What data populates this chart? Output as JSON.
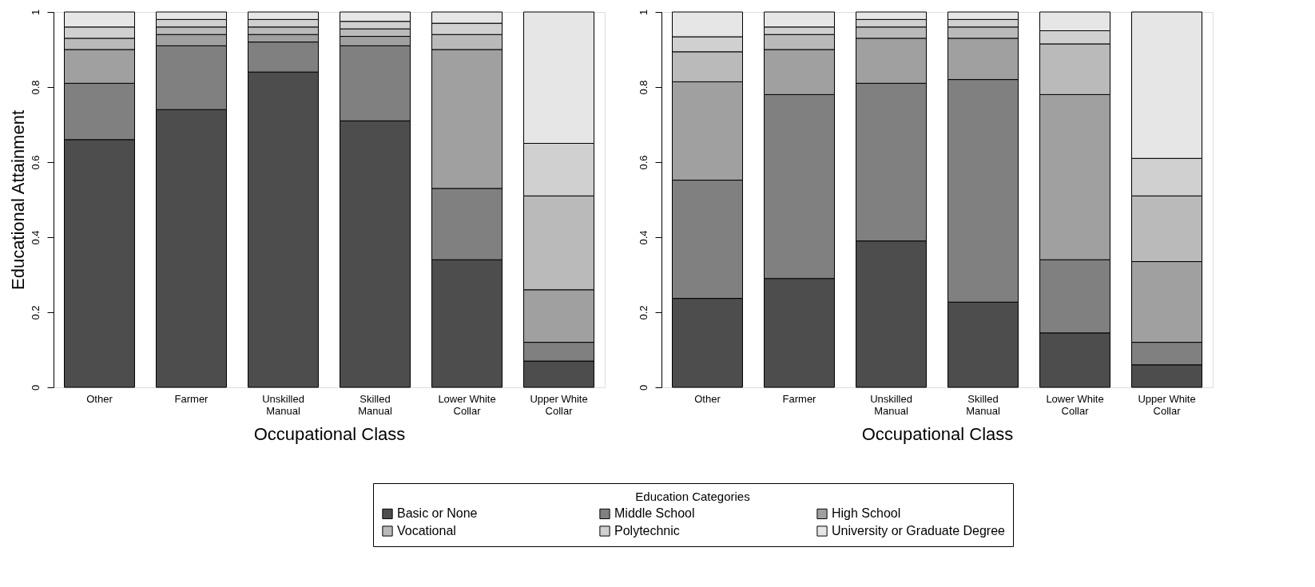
{
  "chart_data": [
    {
      "type": "bar",
      "stacked": true,
      "xlabel": "Occupational Class",
      "ylabel": "Educational Attainment",
      "legend_title": "Education Categories",
      "legend": "bottom",
      "grid": false,
      "categories": [
        "Other",
        "Farmer",
        "Unskilled\nManual",
        "Skilled\nManual",
        "Lower White\nCollar",
        "Upper White\nCollar"
      ],
      "ylim": [
        0,
        1
      ],
      "yticks": [
        0,
        0.2,
        0.4,
        0.6,
        0.8,
        1
      ],
      "series": [
        {
          "name": "Basic or None",
          "color": "#4d4d4d",
          "values": [
            0.66,
            0.74,
            0.84,
            0.71,
            0.34,
            0.07
          ]
        },
        {
          "name": "Middle School",
          "color": "#808080",
          "values": [
            0.15,
            0.17,
            0.08,
            0.2,
            0.19,
            0.05
          ]
        },
        {
          "name": "High School",
          "color": "#a0a0a0",
          "values": [
            0.09,
            0.03,
            0.02,
            0.025,
            0.37,
            0.14
          ]
        },
        {
          "name": "Vocational",
          "color": "#bababa",
          "values": [
            0.03,
            0.02,
            0.02,
            0.02,
            0.04,
            0.25
          ]
        },
        {
          "name": "Polytechnic",
          "color": "#d0d0d0",
          "values": [
            0.03,
            0.02,
            0.02,
            0.02,
            0.03,
            0.14
          ]
        },
        {
          "name": "University or Graduate Degree",
          "color": "#e6e6e6",
          "values": [
            0.04,
            0.02,
            0.02,
            0.025,
            0.03,
            0.35
          ]
        }
      ]
    },
    {
      "type": "bar",
      "stacked": true,
      "xlabel": "Occupational Class",
      "grid": false,
      "categories": [
        "Other",
        "Farmer",
        "Unskilled\nManual",
        "Skilled\nManual",
        "Lower White\nCollar",
        "Upper White\nCollar"
      ],
      "ylim": [
        0,
        1
      ],
      "yticks": [
        0,
        0.2,
        0.4,
        0.6,
        0.8,
        1
      ],
      "series": [
        {
          "name": "Basic or None",
          "color": "#4d4d4d",
          "values": [
            0.237,
            0.29,
            0.39,
            0.227,
            0.145,
            0.06
          ]
        },
        {
          "name": "Middle School",
          "color": "#808080",
          "values": [
            0.315,
            0.49,
            0.42,
            0.593,
            0.195,
            0.06
          ]
        },
        {
          "name": "High School",
          "color": "#a0a0a0",
          "values": [
            0.262,
            0.12,
            0.12,
            0.11,
            0.44,
            0.215
          ]
        },
        {
          "name": "Vocational",
          "color": "#bababa",
          "values": [
            0.08,
            0.04,
            0.03,
            0.03,
            0.135,
            0.175
          ]
        },
        {
          "name": "Polytechnic",
          "color": "#d0d0d0",
          "values": [
            0.04,
            0.02,
            0.02,
            0.02,
            0.035,
            0.1
          ]
        },
        {
          "name": "University or Graduate Degree",
          "color": "#e6e6e6",
          "values": [
            0.066,
            0.04,
            0.02,
            0.02,
            0.05,
            0.39
          ]
        }
      ]
    }
  ]
}
